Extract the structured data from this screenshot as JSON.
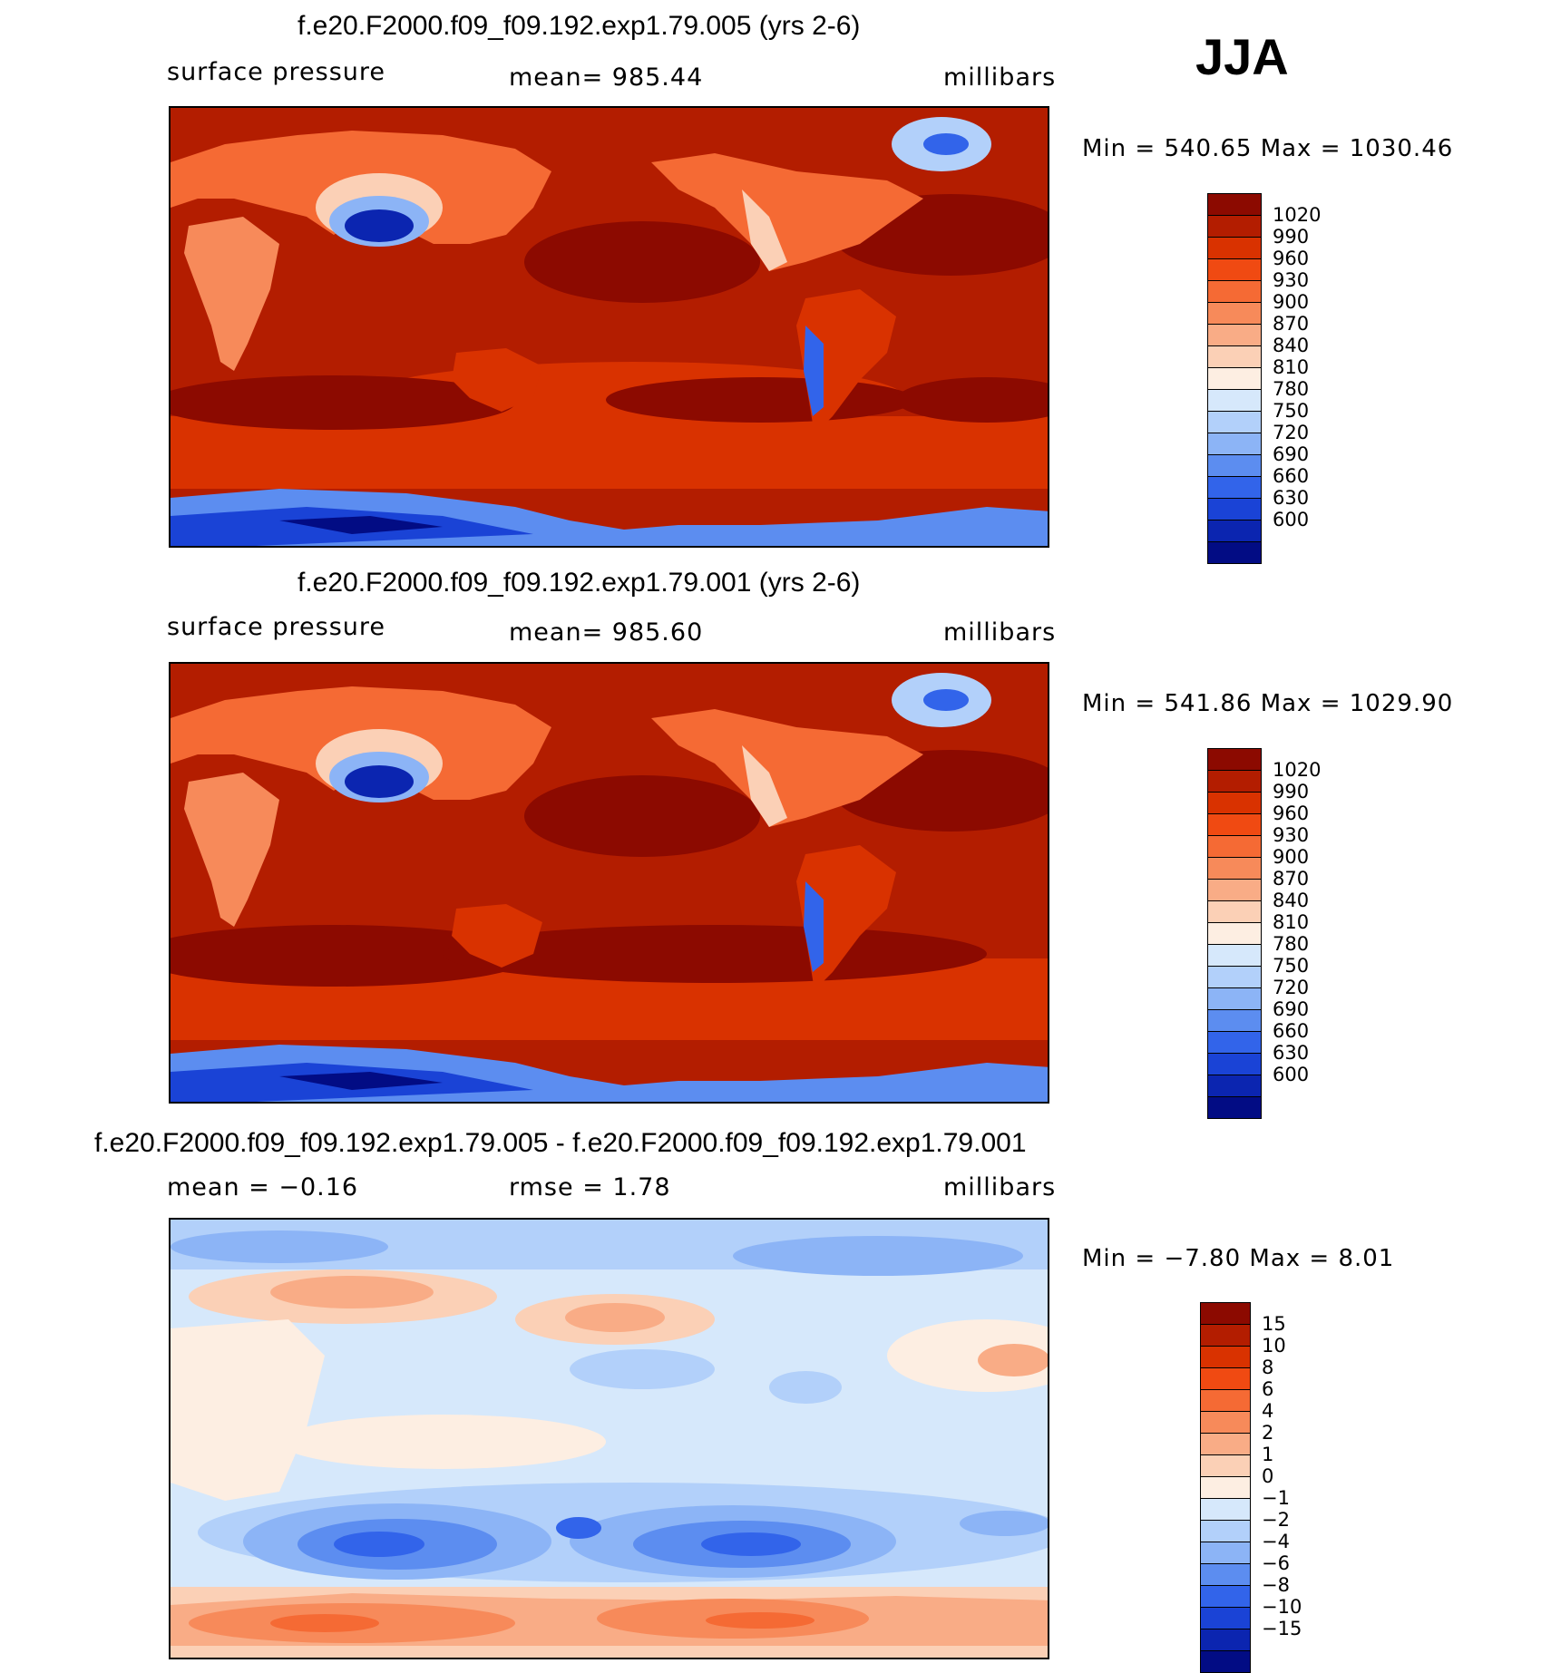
{
  "season": "JJA",
  "panels": [
    {
      "title": "f.e20.F2000.f09_f09.192.exp1.79.005 (yrs 2-6)",
      "left_label": "surface pressure",
      "center_label": "mean= 985.44",
      "right_label": "millibars",
      "minmax": "Min = 540.65 Max = 1030.46",
      "kind": "abs"
    },
    {
      "title": "f.e20.F2000.f09_f09.192.exp1.79.001 (yrs 2-6)",
      "left_label": "surface pressure",
      "center_label": "mean= 985.60",
      "right_label": "millibars",
      "minmax": "Min = 541.86 Max = 1029.90",
      "kind": "abs"
    },
    {
      "title": "f.e20.F2000.f09_f09.192.exp1.79.005 - f.e20.F2000.f09_f09.192.exp1.79.001",
      "left_label": "mean = −0.16",
      "center_label": "rmse = 1.78",
      "right_label": "millibars",
      "minmax": "Min = −7.80 Max = 8.01",
      "kind": "diff"
    }
  ],
  "colorbar_abs": {
    "labels": [
      "1020",
      "990",
      "960",
      "930",
      "900",
      "870",
      "840",
      "810",
      "780",
      "750",
      "720",
      "690",
      "660",
      "630",
      "600"
    ],
    "colors": [
      "#8c0a00",
      "#b31d00",
      "#d93200",
      "#f04a12",
      "#f56a34",
      "#f78a5a",
      "#f9ac86",
      "#fbd0b6",
      "#fdeee2",
      "#d6e8fb",
      "#b2d0fa",
      "#8cb4f6",
      "#5c8df0",
      "#3264ea",
      "#1a43d6",
      "#0b25b0",
      "#020c84"
    ]
  },
  "colorbar_diff": {
    "labels": [
      "15",
      "10",
      "8",
      "6",
      "4",
      "2",
      "1",
      "0",
      "−1",
      "−2",
      "−4",
      "−6",
      "−8",
      "−10",
      "−15"
    ],
    "colors": [
      "#8c0a00",
      "#b31d00",
      "#d93200",
      "#f04a12",
      "#f56a34",
      "#f78a5a",
      "#f9ac86",
      "#fbd0b6",
      "#fdeee2",
      "#d6e8fb",
      "#b2d0fa",
      "#8cb4f6",
      "#5c8df0",
      "#3264ea",
      "#1a43d6",
      "#0b25b0",
      "#020c84"
    ]
  }
}
